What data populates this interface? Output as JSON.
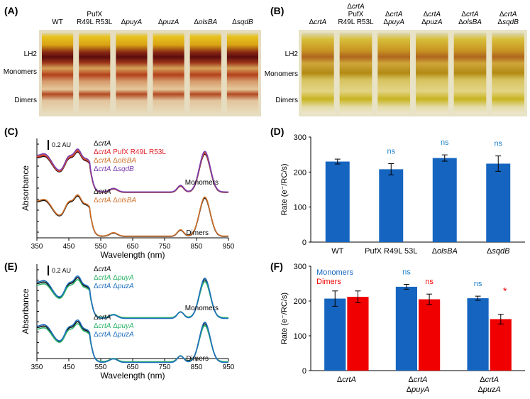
{
  "colors": {
    "red": "#e0202a",
    "orange": "#d0702a",
    "purple": "#7a3ab0",
    "blue": "#1f6fbf",
    "green": "#2db36a",
    "black": "#111111",
    "ns_blue": "#1e80c8",
    "bar_blue": "#1565c0",
    "bar_red": "#f00000"
  },
  "panel_labels": [
    "(A)",
    "(B)",
    "(C)",
    "(D)",
    "(E)",
    "(F)"
  ],
  "gel_a": {
    "lanes": [
      "WT",
      "PufX\nR49L R53L",
      "ΔpuyA",
      "ΔpuzA",
      "ΔolsBA",
      "ΔsqdB"
    ],
    "bands": [
      "LH2",
      "Monomers",
      "Dimers"
    ]
  },
  "gel_b": {
    "lanes": [
      "ΔcrtA",
      "ΔcrtA\nPufX\nR49L R53L",
      "ΔcrtA\nΔpuyA",
      "ΔcrtA\nΔpuzA",
      "ΔcrtA\nΔolsBA",
      "ΔcrtA\nΔsqdB"
    ],
    "bands": [
      "LH2",
      "Monomers",
      "Dimers"
    ]
  },
  "chart_data": [
    {
      "panel": "C",
      "type": "line",
      "xlabel": "Wavelength (nm)",
      "ylabel": "Absorbance",
      "x_ticks": [
        350,
        450,
        550,
        650,
        750,
        850,
        950
      ],
      "xlim": [
        350,
        950
      ],
      "scale_bar": "0.2 AU",
      "groups": [
        {
          "label": "Monomers",
          "legend": [
            {
              "name": "ΔcrtA",
              "color": "#111111"
            },
            {
              "name": "ΔcrtA PufX R49L R53L",
              "color": "#e0202a"
            },
            {
              "name": "ΔcrtA ΔolsBA",
              "color": "#d0702a"
            },
            {
              "name": "ΔcrtA ΔsqdB",
              "color": "#7a3ab0"
            }
          ]
        },
        {
          "label": "Dimers",
          "legend": [
            {
              "name": "ΔcrtA",
              "color": "#111111"
            },
            {
              "name": "ΔcrtA ΔolsBA",
              "color": "#d0702a"
            }
          ]
        }
      ]
    },
    {
      "panel": "D",
      "type": "bar",
      "ylabel": "Rate (e⁻/RC/s)",
      "ylim": [
        0,
        300
      ],
      "y_ticks": [
        0,
        100,
        200,
        300
      ],
      "categories": [
        "WT",
        "PufX R49L 53L",
        "ΔolsBA",
        "ΔsqdB"
      ],
      "values": [
        230,
        208,
        240,
        224
      ],
      "errors": [
        7,
        16,
        9,
        22
      ],
      "annotations": [
        "",
        "ns",
        "ns",
        "ns"
      ]
    },
    {
      "panel": "E",
      "type": "line",
      "xlabel": "Wavelength (nm)",
      "ylabel": "Absorbance",
      "x_ticks": [
        350,
        450,
        550,
        650,
        750,
        850,
        950
      ],
      "xlim": [
        350,
        950
      ],
      "scale_bar": "0.2 AU",
      "groups": [
        {
          "label": "Monomers",
          "legend": [
            {
              "name": "ΔcrtA",
              "color": "#111111"
            },
            {
              "name": "ΔcrtA ΔpuyA",
              "color": "#2db36a"
            },
            {
              "name": "ΔcrtA ΔpuzA",
              "color": "#1f6fbf"
            }
          ]
        },
        {
          "label": "Dimers",
          "legend": [
            {
              "name": "ΔcrtA",
              "color": "#111111"
            },
            {
              "name": "ΔcrtA ΔpuyA",
              "color": "#2db36a"
            },
            {
              "name": "ΔcrtA ΔpuzA",
              "color": "#1f6fbf"
            }
          ]
        }
      ]
    },
    {
      "panel": "F",
      "type": "bar",
      "ylabel": "Rate (e⁻/RC/s)",
      "ylim": [
        0,
        300
      ],
      "y_ticks": [
        0,
        100,
        200,
        300
      ],
      "categories": [
        "ΔcrtA",
        "ΔcrtA\nΔpuyA",
        "ΔcrtA\nΔpuzA"
      ],
      "legend": [
        "Monomers",
        "Dimers"
      ],
      "series": [
        {
          "name": "Monomers",
          "values": [
            207,
            241,
            208
          ],
          "errors": [
            22,
            7,
            6
          ]
        },
        {
          "name": "Dimers",
          "values": [
            212,
            205,
            148
          ],
          "errors": [
            17,
            15,
            14
          ]
        }
      ],
      "annotations": [
        [
          "",
          ""
        ],
        [
          "ns",
          "ns"
        ],
        [
          "ns",
          "*"
        ]
      ]
    }
  ]
}
